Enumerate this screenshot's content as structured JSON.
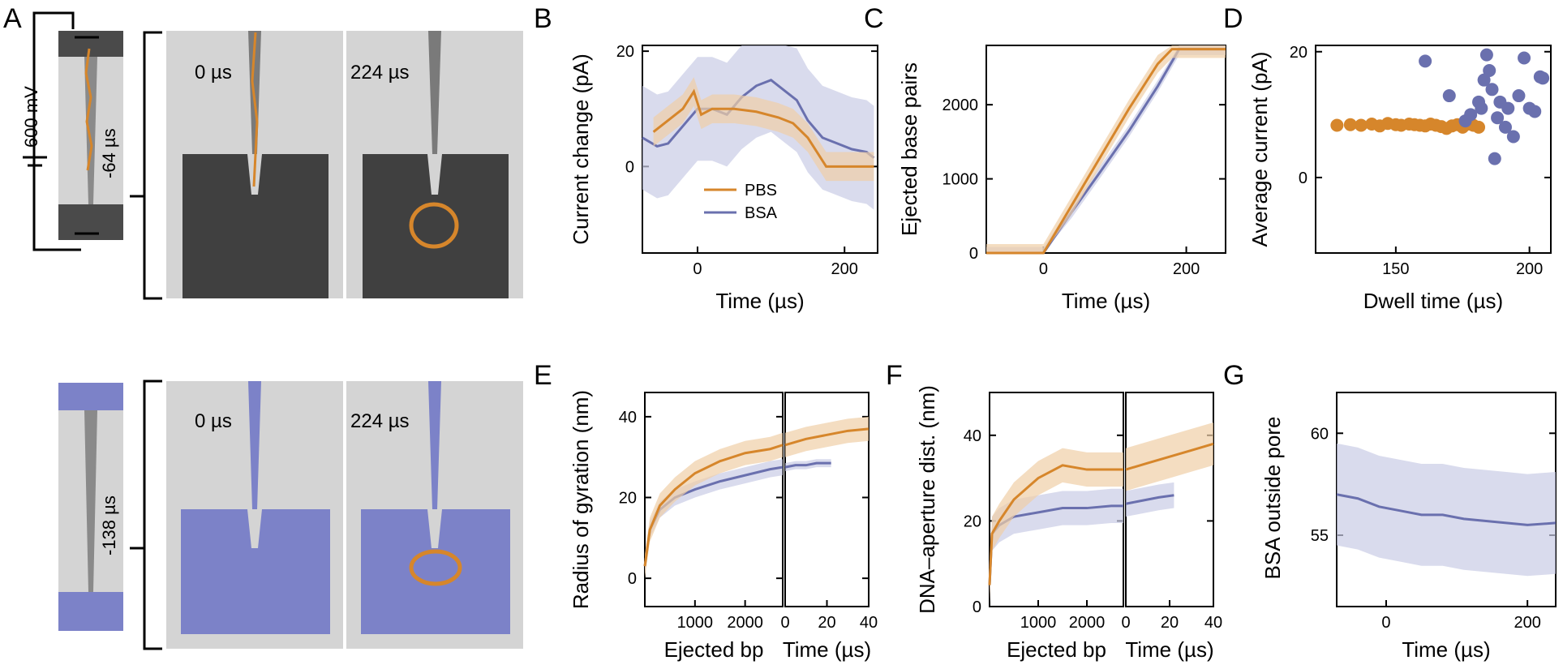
{
  "panels": {
    "A": {
      "letter": "A",
      "voltage": "600 mV",
      "top": {
        "time_side": "-64 µs",
        "snap1": "0 µs",
        "snap2": "224 µs"
      },
      "bottom": {
        "time_side": "-138 µs",
        "snap1": "0 µs",
        "snap2": "224 µs"
      }
    },
    "B": {
      "letter": "B"
    },
    "C": {
      "letter": "C"
    },
    "D": {
      "letter": "D"
    },
    "E": {
      "letter": "E"
    },
    "F": {
      "letter": "F"
    },
    "G": {
      "letter": "G"
    }
  },
  "colors": {
    "PBS": "#d6862b",
    "BSA": "#6a70ae",
    "PBS_band": "#f0cfa6",
    "BSA_band": "#c9cce6",
    "bg_snapshot": "#d4d4d4",
    "pore": "#555555",
    "bead": "#7c82c8"
  },
  "chart_data": [
    {
      "id": "B",
      "type": "line",
      "xlabel": "Time (µs)",
      "ylabel": "Current change (pA)",
      "xlim": [
        -75,
        245
      ],
      "ylim": [
        -15,
        21
      ],
      "xticks": [
        0,
        200
      ],
      "yticks": [
        0,
        20
      ],
      "legend": [
        "PBS",
        "BSA"
      ],
      "legend_position": "center",
      "series": [
        {
          "name": "PBS",
          "x": [
            -60,
            -40,
            -20,
            -5,
            5,
            20,
            50,
            80,
            110,
            130,
            150,
            165,
            175,
            200,
            240
          ],
          "y": [
            6,
            8,
            10,
            13,
            9,
            10,
            10,
            9.5,
            8.5,
            7.5,
            5,
            2,
            0,
            0,
            0
          ],
          "band": 2.5
        },
        {
          "name": "BSA",
          "x": [
            -75,
            -55,
            -40,
            -20,
            0,
            20,
            40,
            60,
            80,
            100,
            120,
            135,
            150,
            170,
            190,
            210,
            230,
            240
          ],
          "y": [
            5,
            3.5,
            4,
            7,
            10,
            10,
            9,
            12,
            14,
            15,
            13,
            11.5,
            8,
            5,
            4,
            3,
            2.5,
            1.5
          ],
          "band": 9
        }
      ]
    },
    {
      "id": "C",
      "type": "line",
      "xlabel": "Time (µs)",
      "ylabel": "Ejected base pairs",
      "xlim": [
        -80,
        255
      ],
      "ylim": [
        0,
        2800
      ],
      "xticks": [
        0,
        200
      ],
      "yticks": [
        0,
        1000,
        2000
      ],
      "series": [
        {
          "name": "PBS",
          "x": [
            -80,
            0,
            40,
            80,
            120,
            160,
            180,
            255
          ],
          "y": [
            0,
            0,
            650,
            1300,
            1950,
            2550,
            2750,
            2750
          ],
          "band": 120
        },
        {
          "name": "BSA",
          "x": [
            -80,
            0,
            40,
            80,
            120,
            160,
            190,
            255
          ],
          "y": [
            0,
            0,
            560,
            1100,
            1650,
            2250,
            2750,
            2750
          ],
          "band": 80
        }
      ]
    },
    {
      "id": "D",
      "type": "scatter",
      "xlabel": "Dwell time (µs)",
      "ylabel": "Average current (pA)",
      "xlim": [
        120,
        208
      ],
      "ylim": [
        -12,
        21
      ],
      "xticks": [
        150,
        200
      ],
      "yticks": [
        0,
        20
      ],
      "series": [
        {
          "name": "PBS",
          "x": [
            128,
            133,
            137,
            141,
            144,
            147,
            150,
            152,
            155,
            157,
            159,
            161,
            163,
            165,
            167,
            169,
            171,
            173,
            175,
            177,
            179,
            181
          ],
          "y": [
            8.3,
            8.4,
            8.3,
            8.5,
            8.2,
            8.6,
            8.4,
            8.3,
            8.5,
            8.4,
            8.3,
            8.2,
            8.5,
            8.3,
            8.1,
            7.8,
            8.2,
            8.4,
            8.0,
            8.5,
            8.3,
            8.0
          ]
        },
        {
          "name": "BSA",
          "x": [
            161,
            170,
            176,
            178,
            181,
            182,
            183,
            184,
            185,
            186,
            187,
            188,
            189,
            191,
            192,
            194,
            196,
            198,
            200,
            202,
            204,
            205
          ],
          "y": [
            18.5,
            13,
            9,
            10,
            12,
            11,
            15.5,
            19.5,
            17,
            14,
            3,
            9.5,
            12,
            8,
            11,
            6.5,
            13,
            19,
            11,
            10.5,
            16,
            15.8
          ]
        }
      ]
    },
    {
      "id": "E",
      "type": "line",
      "xlabel": "Ejected bp",
      "xlabel2": "Time (µs)",
      "ylabel": "Radius of gyration (nm)",
      "ylim": [
        -7,
        46
      ],
      "yticks": [
        0,
        20,
        40
      ],
      "left": {
        "xlim": [
          0,
          2750
        ],
        "xticks": [
          1000,
          2000
        ],
        "series": [
          {
            "name": "PBS",
            "x": [
              0,
              100,
              300,
              600,
              1000,
              1500,
              2000,
              2500,
              2750
            ],
            "y": [
              3,
              12,
              18,
              22,
              26,
              29,
              31,
              32,
              33
            ],
            "band": 3
          },
          {
            "name": "BSA",
            "x": [
              0,
              100,
              300,
              600,
              1000,
              1500,
              2000,
              2500,
              2750
            ],
            "y": [
              3,
              12,
              17,
              20,
              22,
              24,
              25.5,
              27,
              27.5
            ],
            "band": 2
          }
        ]
      },
      "right": {
        "xlim": [
          0,
          40
        ],
        "xticks": [
          0,
          20,
          40
        ],
        "series": [
          {
            "name": "PBS",
            "x": [
              0,
              10,
              20,
              30,
              40
            ],
            "y": [
              33,
              34.5,
              35.5,
              36.5,
              37
            ],
            "band": 3
          },
          {
            "name": "BSA",
            "x": [
              0,
              5,
              10,
              15,
              20,
              22
            ],
            "y": [
              27.5,
              28,
              28,
              28.5,
              28.5,
              28.5
            ],
            "band": 1
          }
        ]
      }
    },
    {
      "id": "F",
      "type": "line",
      "xlabel": "Ejected bp",
      "xlabel2": "Time (µs)",
      "ylabel": "DNA–aperture dist. (nm)",
      "ylim": [
        0,
        50
      ],
      "yticks": [
        0,
        20,
        40
      ],
      "left": {
        "xlim": [
          0,
          2750
        ],
        "xticks": [
          1000,
          2000
        ],
        "series": [
          {
            "name": "PBS",
            "x": [
              0,
              50,
              200,
              500,
              1000,
              1500,
              2000,
              2500,
              2750
            ],
            "y": [
              5,
              17,
              20,
              25,
              30,
              33,
              32,
              32,
              32
            ],
            "band": 4
          },
          {
            "name": "BSA",
            "x": [
              0,
              50,
              200,
              500,
              1000,
              1500,
              2000,
              2500,
              2750
            ],
            "y": [
              5,
              17,
              19,
              21,
              22,
              23,
              23,
              23.5,
              23.5
            ],
            "band": 4
          }
        ]
      },
      "right": {
        "xlim": [
          0,
          40
        ],
        "xticks": [
          0,
          20,
          40
        ],
        "series": [
          {
            "name": "PBS",
            "x": [
              0,
              10,
              20,
              30,
              40
            ],
            "y": [
              32,
              33.5,
              35,
              36.5,
              38
            ],
            "band": 5
          },
          {
            "name": "BSA",
            "x": [
              0,
              5,
              10,
              15,
              22
            ],
            "y": [
              24,
              24.5,
              25,
              25.5,
              26
            ],
            "band": 3
          }
        ]
      }
    },
    {
      "id": "G",
      "type": "line",
      "xlabel": "Time (µs)",
      "ylabel": "BSA outside pore",
      "xlim": [
        -70,
        240
      ],
      "ylim": [
        51.5,
        62
      ],
      "xticks": [
        0,
        200
      ],
      "yticks": [
        55,
        60
      ],
      "series": [
        {
          "name": "BSA",
          "x": [
            -70,
            -40,
            -10,
            20,
            50,
            80,
            110,
            140,
            170,
            200,
            240
          ],
          "y": [
            57,
            56.8,
            56.4,
            56.2,
            56,
            56,
            55.8,
            55.7,
            55.6,
            55.5,
            55.6
          ],
          "band": 2.5
        }
      ]
    }
  ]
}
